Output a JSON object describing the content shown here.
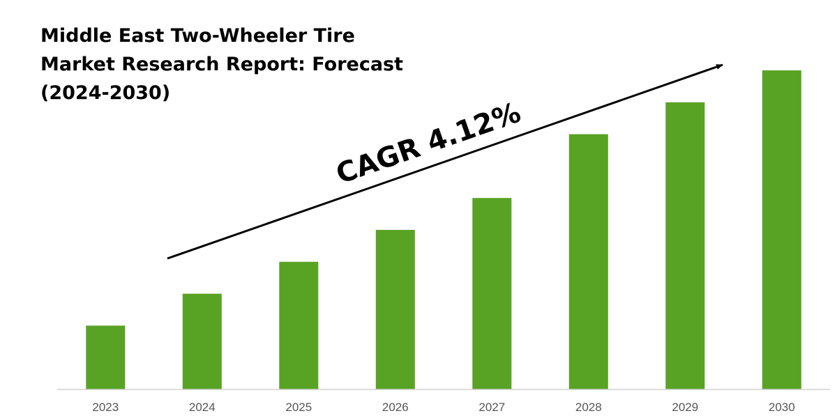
{
  "chart_data": {
    "type": "bar",
    "title": "Middle East Two-Wheeler Tire Market Research Report: Forecast (2024-2030)",
    "title_lines": [
      "Middle East Two-Wheeler Tire",
      "Market Research Report: Forecast",
      "(2024-2030)"
    ],
    "categories": [
      "2023",
      "2024",
      "2025",
      "2026",
      "2027",
      "2028",
      "2029",
      "2030"
    ],
    "values": [
      1.0,
      1.5,
      2.0,
      2.5,
      3.0,
      4.0,
      4.5,
      5.0
    ],
    "ylim": [
      0,
      5.0
    ],
    "grid": false,
    "bar_color": "#58a324",
    "axis_color": "#d0d0d0",
    "annotation": "CAGR 4.12%"
  }
}
